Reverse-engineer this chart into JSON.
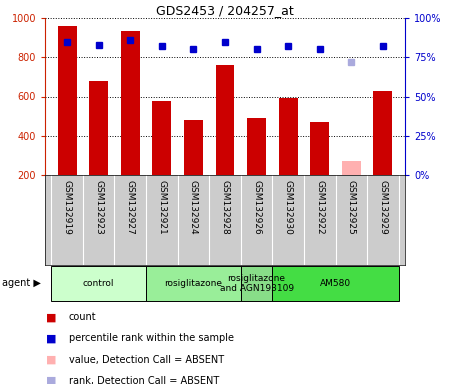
{
  "title": "GDS2453 / 204257_at",
  "samples": [
    "GSM132919",
    "GSM132923",
    "GSM132927",
    "GSM132921",
    "GSM132924",
    "GSM132928",
    "GSM132926",
    "GSM132930",
    "GSM132922",
    "GSM132925",
    "GSM132929"
  ],
  "counts": [
    960,
    680,
    935,
    575,
    480,
    760,
    490,
    590,
    470,
    270,
    630
  ],
  "absent_count": [
    false,
    false,
    false,
    false,
    false,
    false,
    false,
    false,
    false,
    true,
    false
  ],
  "percentile_ranks": [
    85,
    83,
    86,
    82,
    80,
    85,
    80,
    82,
    80,
    72,
    82
  ],
  "absent_rank": [
    false,
    false,
    false,
    false,
    false,
    false,
    false,
    false,
    false,
    true,
    false
  ],
  "ylim_left": [
    200,
    1000
  ],
  "ylim_right": [
    0,
    100
  ],
  "bar_color": "#CC0000",
  "absent_bar_color": "#FFB0B0",
  "rank_color": "#0000CC",
  "absent_rank_color": "#AAAADD",
  "agent_groups": [
    {
      "label": "control",
      "start": 0,
      "end": 3,
      "color": "#CCFFCC"
    },
    {
      "label": "rosiglitazone",
      "start": 3,
      "end": 6,
      "color": "#99EE99"
    },
    {
      "label": "rosiglitazone\nand AGN193109",
      "start": 6,
      "end": 7,
      "color": "#88DD88"
    },
    {
      "label": "AM580",
      "start": 7,
      "end": 11,
      "color": "#44DD44"
    }
  ],
  "yticks_left": [
    200,
    400,
    600,
    800,
    1000
  ],
  "yticks_right": [
    0,
    25,
    50,
    75,
    100
  ],
  "label_bg_color": "#CCCCCC",
  "left_color": "#CC2200",
  "right_color": "#0000CC"
}
